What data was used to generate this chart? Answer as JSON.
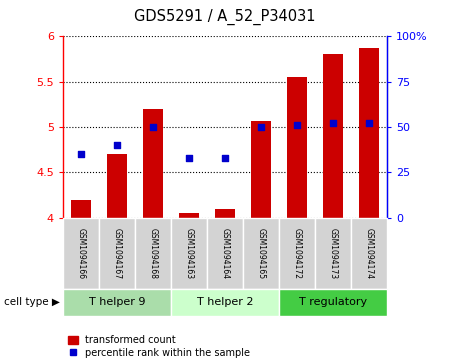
{
  "title": "GDS5291 / A_52_P34031",
  "samples": [
    "GSM1094166",
    "GSM1094167",
    "GSM1094168",
    "GSM1094163",
    "GSM1094164",
    "GSM1094165",
    "GSM1094172",
    "GSM1094173",
    "GSM1094174"
  ],
  "bar_values": [
    4.2,
    4.7,
    5.2,
    4.05,
    4.1,
    5.07,
    5.55,
    5.8,
    5.87
  ],
  "percentile_values": [
    35,
    40,
    50,
    33,
    33,
    50,
    51,
    52,
    52
  ],
  "ylim_left": [
    4.0,
    6.0
  ],
  "ylim_right": [
    0,
    100
  ],
  "bar_color": "#cc0000",
  "dot_color": "#0000cc",
  "bar_bottom": 4.0,
  "groups": [
    {
      "label": "T helper 9",
      "start": 0,
      "end": 3,
      "color": "#aaddaa"
    },
    {
      "label": "T helper 2",
      "start": 3,
      "end": 6,
      "color": "#ccffcc"
    },
    {
      "label": "T regulatory",
      "start": 6,
      "end": 9,
      "color": "#44cc44"
    }
  ],
  "yticks_left": [
    4.0,
    4.5,
    5.0,
    5.5,
    6.0
  ],
  "yticks_right": [
    0,
    25,
    50,
    75,
    100
  ],
  "ytick_labels_left": [
    "4",
    "4.5",
    "5",
    "5.5",
    "6"
  ],
  "ytick_labels_right": [
    "0",
    "25",
    "50",
    "75",
    "100%"
  ],
  "legend_bar_label": "transformed count",
  "legend_dot_label": "percentile rank within the sample",
  "cell_type_label": "cell type"
}
